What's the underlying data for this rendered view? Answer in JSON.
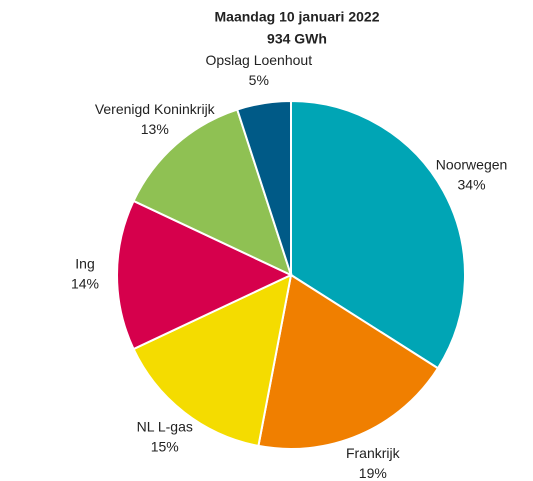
{
  "chart_data": {
    "type": "pie",
    "title": "Maandag 10 januari 2022",
    "subtitle": "934 GWh",
    "categories": [
      "Noorwegen",
      "Frankrijk",
      "NL L-gas",
      "Ing",
      "Verenigd Koninkrijk",
      "Opslag Loenhout"
    ],
    "values": [
      34,
      19,
      15,
      14,
      13,
      5
    ],
    "value_labels": [
      "34%",
      "19%",
      "15%",
      "14%",
      "13%",
      "5%"
    ],
    "colors": [
      "#00a5b5",
      "#f07f00",
      "#f4dc00",
      "#d6004c",
      "#8fc153",
      "#005a87"
    ]
  }
}
